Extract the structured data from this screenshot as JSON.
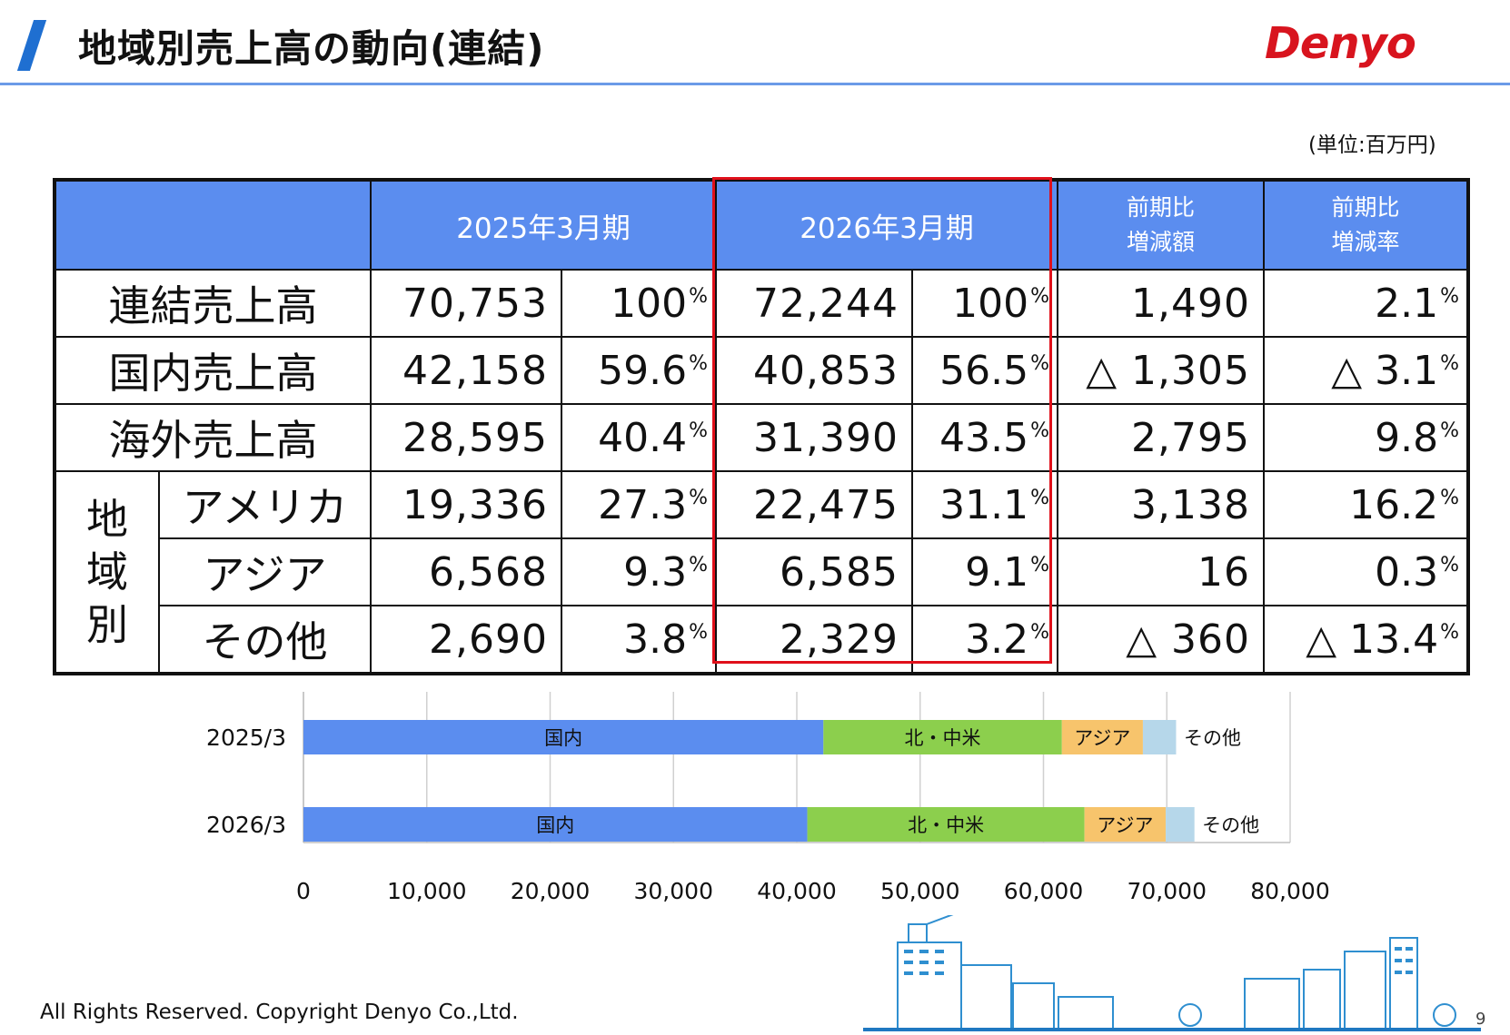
{
  "header": {
    "title": "地域別売上高の動向(連結)",
    "logo_text": "Denyo",
    "unit": "(単位:百万円)"
  },
  "table": {
    "col_headers": {
      "fy2025": "2025年3月期",
      "fy2026": "2026年3月期",
      "diff_line1": "前期比",
      "diff_line2": "増減額",
      "rate_line1": "前期比",
      "rate_line2": "増減率"
    },
    "pct_mark": "%",
    "region_label_chars": [
      "地",
      "域",
      "別"
    ],
    "rows": [
      {
        "label": "連結売上高",
        "v2025": "70,753",
        "p2025": "100",
        "v2026": "72,244",
        "p2026": "100",
        "diff": "1,490",
        "rate": "2.1"
      },
      {
        "label": "国内売上高",
        "v2025": "42,158",
        "p2025": "59.6",
        "v2026": "40,853",
        "p2026": "56.5",
        "diff": "△ 1,305",
        "rate": "△ 3.1"
      },
      {
        "label": "海外売上高",
        "v2025": "28,595",
        "p2025": "40.4",
        "v2026": "31,390",
        "p2026": "43.5",
        "diff": "2,795",
        "rate": "9.8"
      },
      {
        "label": "アメリカ",
        "v2025": "19,336",
        "p2025": "27.3",
        "v2026": "22,475",
        "p2026": "31.1",
        "diff": "3,138",
        "rate": "16.2"
      },
      {
        "label": "アジア",
        "v2025": "6,568",
        "p2025": "9.3",
        "v2026": "6,585",
        "p2026": "9.1",
        "diff": "16",
        "rate": "0.3"
      },
      {
        "label": "その他",
        "v2025": "2,690",
        "p2025": "3.8",
        "v2026": "2,329",
        "p2026": "3.2",
        "diff": "△ 360",
        "rate": "△ 13.4"
      }
    ]
  },
  "chart_data": {
    "type": "bar",
    "orientation": "horizontal",
    "stacked": true,
    "categories": [
      "2025/3",
      "2026/3"
    ],
    "series": [
      {
        "name": "国内",
        "values": [
          42158,
          40853
        ],
        "color": "#5b8def"
      },
      {
        "name": "北・中米",
        "values": [
          19336,
          22475
        ],
        "color": "#8ccf4d"
      },
      {
        "name": "アジア",
        "values": [
          6568,
          6585
        ],
        "color": "#f7c46c"
      },
      {
        "name": "その他",
        "values": [
          2690,
          2329
        ],
        "color": "#b6d7ea"
      }
    ],
    "xlim": [
      0,
      80000
    ],
    "xticks": [
      "0",
      "10,000",
      "20,000",
      "30,000",
      "40,000",
      "50,000",
      "60,000",
      "70,000",
      "80,000"
    ],
    "grid": "vertical"
  },
  "footer": {
    "copyright": "All Rights Reserved. Copyright Denyo Co.,Ltd.",
    "page": "9"
  }
}
